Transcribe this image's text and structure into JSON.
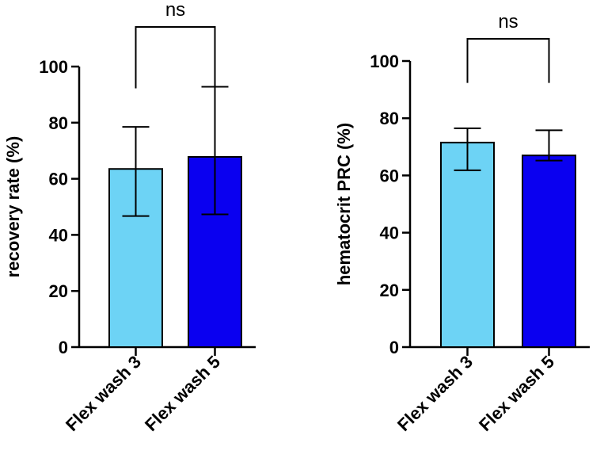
{
  "chart_data": [
    {
      "type": "bar",
      "ylabel": "recovery rate (%)",
      "ylim": [
        0,
        100
      ],
      "yticks": [
        0,
        20,
        40,
        60,
        80,
        100
      ],
      "categories": [
        "Flex wash 3",
        "Flex wash 5"
      ],
      "values": [
        63.5,
        67.8
      ],
      "error_upper": [
        78.5,
        92.8
      ],
      "error_lower": [
        46.7,
        47.3
      ],
      "colors": [
        "#6DD3F5",
        "#0A00F0"
      ],
      "significance": {
        "label": "ns",
        "between": [
          0,
          1
        ]
      }
    },
    {
      "type": "bar",
      "ylabel": "hematocrit PRC (%)",
      "ylim": [
        0,
        100
      ],
      "yticks": [
        0,
        20,
        40,
        60,
        80,
        100
      ],
      "categories": [
        "Flex wash 3",
        "Flex wash 5"
      ],
      "values": [
        71.5,
        67.0
      ],
      "error_upper": [
        76.5,
        75.8
      ],
      "error_lower": [
        61.8,
        65.2
      ],
      "colors": [
        "#6DD3F5",
        "#0A00F0"
      ],
      "significance": {
        "label": "ns",
        "between": [
          0,
          1
        ]
      }
    }
  ]
}
